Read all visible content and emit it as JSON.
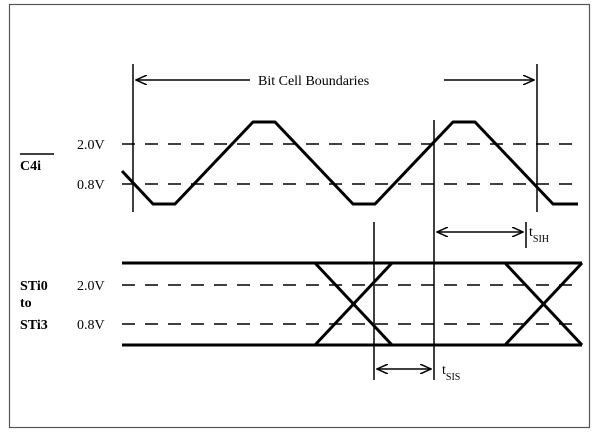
{
  "title": "Bit Cell Boundaries",
  "clock": {
    "name": "C4i",
    "overbar": true,
    "levels": {
      "high": "2.0V",
      "low": "0.8V"
    }
  },
  "data": {
    "name_line1": "STi0",
    "name_line2": "to",
    "name_line3": "STi3",
    "levels": {
      "high": "2.0V",
      "low": "0.8V"
    }
  },
  "timing": {
    "hold": {
      "base": "t",
      "sub": "SIH"
    },
    "setup": {
      "base": "t",
      "sub": "SIS"
    }
  },
  "colors": {
    "stroke": "#000000",
    "background": "#ffffff",
    "frame": "#555555"
  }
}
